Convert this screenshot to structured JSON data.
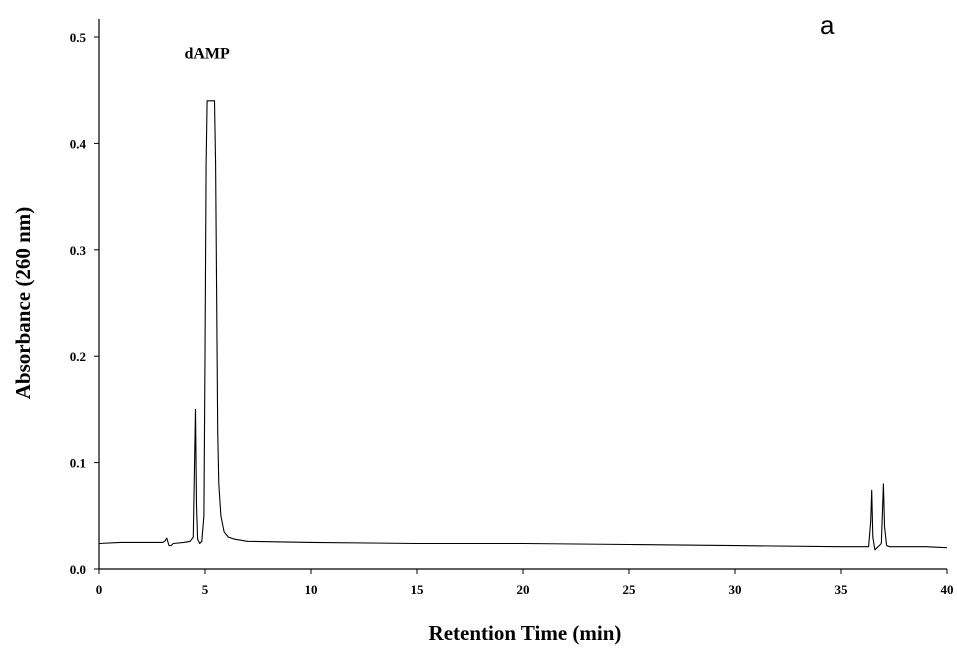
{
  "panel_label": "a",
  "chart_data": {
    "type": "line",
    "title": "",
    "xlabel": "Retention Time (min)",
    "ylabel": "Absorbance (260 nm)",
    "xlim": [
      0,
      40
    ],
    "ylim": [
      0,
      0.5
    ],
    "x_ticks": [
      0,
      5,
      10,
      15,
      20,
      25,
      30,
      35,
      40
    ],
    "y_ticks": [
      0.0,
      0.1,
      0.2,
      0.3,
      0.4,
      0.5
    ],
    "y_tick_labels": [
      "0.0",
      "0.1",
      "0.2",
      "0.3",
      "0.4",
      "0.5"
    ],
    "grid": false,
    "legend": "none",
    "line_color": "#000000",
    "annotations": [
      {
        "text": "dAMP",
        "x": 5.1,
        "y": 0.48
      }
    ],
    "series": [
      {
        "x": [
          -0.1,
          1,
          2,
          3,
          3.1,
          3.2,
          3.3,
          3.4,
          3.5,
          4,
          4.3,
          4.45,
          4.5,
          4.55,
          4.6,
          4.65,
          4.75,
          4.85,
          4.95,
          5.0,
          5.05,
          5.1,
          5.2,
          5.3,
          5.4,
          5.45,
          5.5,
          5.55,
          5.6,
          5.65,
          5.75,
          5.9,
          6.1,
          6.4,
          7,
          10,
          15,
          20,
          25,
          30,
          35,
          36.3,
          36.4,
          36.45,
          36.5,
          36.6,
          36.7,
          36.8,
          36.9,
          36.95,
          37.0,
          37.05,
          37.15,
          37.3,
          38,
          39,
          40
        ],
        "y": [
          0.024,
          0.025,
          0.025,
          0.025,
          0.026,
          0.029,
          0.022,
          0.022,
          0.024,
          0.025,
          0.026,
          0.03,
          0.09,
          0.15,
          0.06,
          0.028,
          0.024,
          0.026,
          0.05,
          0.2,
          0.38,
          0.44,
          0.44,
          0.44,
          0.44,
          0.44,
          0.38,
          0.25,
          0.13,
          0.08,
          0.05,
          0.035,
          0.03,
          0.028,
          0.026,
          0.025,
          0.024,
          0.024,
          0.023,
          0.022,
          0.021,
          0.021,
          0.045,
          0.074,
          0.03,
          0.018,
          0.02,
          0.022,
          0.024,
          0.05,
          0.08,
          0.04,
          0.022,
          0.021,
          0.021,
          0.021,
          0.02
        ]
      }
    ]
  }
}
